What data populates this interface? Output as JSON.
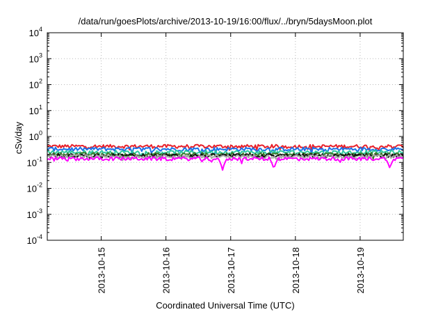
{
  "chart_data": {
    "type": "line",
    "title": "/data/run/goesPlots/archive/2013-10-19/16:00/flux/../bryn/5daysMoon.plot",
    "xlabel": "Coordinated Universal Time (UTC)",
    "ylabel": "cSv/day",
    "y_scale": "log",
    "ylim": [
      0.0001,
      10000
    ],
    "y_ticks": [
      {
        "base": "10",
        "exp": "-4",
        "value": 0.0001
      },
      {
        "base": "10",
        "exp": "-3",
        "value": 0.001
      },
      {
        "base": "10",
        "exp": "-2",
        "value": 0.01
      },
      {
        "base": "10",
        "exp": "-1",
        "value": 0.1
      },
      {
        "base": "10",
        "exp": "0",
        "value": 1
      },
      {
        "base": "10",
        "exp": "1",
        "value": 10
      },
      {
        "base": "10",
        "exp": "2",
        "value": 100
      },
      {
        "base": "10",
        "exp": "3",
        "value": 1000
      },
      {
        "base": "10",
        "exp": "4",
        "value": 10000
      }
    ],
    "xlim": [
      "2013-10-14 04:00",
      "2013-10-19 16:00"
    ],
    "x_ticks": [
      "2013-10-15",
      "2013-10-16",
      "2013-10-17",
      "2013-10-18",
      "2013-10-19"
    ],
    "grid": true,
    "series": [
      {
        "color": "#e8202a",
        "level": 0.42,
        "dips": []
      },
      {
        "color": "#1a72e8",
        "level": 0.33,
        "dips": []
      },
      {
        "color": "#2ec8a0",
        "level": 0.25,
        "dips": []
      },
      {
        "color": "#3a7a28",
        "level": 0.205,
        "dips": []
      },
      {
        "color": "#111111",
        "level": 0.185,
        "dips": []
      },
      {
        "color": "#a8a8a8",
        "level": 0.17,
        "dips": []
      },
      {
        "color": "#ff00ff",
        "level": 0.14,
        "dips": [
          {
            "x": "2013-10-16 21:00",
            "value": 0.05
          },
          {
            "x": "2013-10-17 16:00",
            "value": 0.055
          },
          {
            "x": "2013-10-19 11:00",
            "value": 0.06
          }
        ]
      }
    ]
  }
}
